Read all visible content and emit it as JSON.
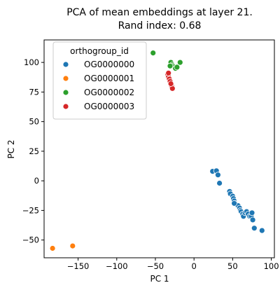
{
  "chart_data": {
    "type": "scatter",
    "title": "PCA of mean embeddings at layer 21.",
    "subtitle": "Rand index: 0.68",
    "xlabel": "PC 1",
    "ylabel": "PC 2",
    "xlim": [
      -194,
      104
    ],
    "ylim": [
      -65,
      119
    ],
    "xticks": [
      -150,
      -100,
      -50,
      0,
      50,
      100
    ],
    "yticks": [
      -50,
      -25,
      0,
      25,
      50,
      75,
      100
    ],
    "xtick_labels": [
      "−150",
      "−100",
      "−50",
      "0",
      "50",
      "100"
    ],
    "ytick_labels": [
      "−50",
      "−25",
      "0",
      "25",
      "50",
      "75",
      "100"
    ],
    "grid": false,
    "legend": {
      "title": "orthogroup_id",
      "placement": "top-left"
    },
    "series": [
      {
        "name": "OG0000000",
        "color": "#1f77b4",
        "points": [
          [
            24,
            8
          ],
          [
            29,
            8.5
          ],
          [
            31,
            5
          ],
          [
            33,
            -2
          ],
          [
            46,
            -9
          ],
          [
            47,
            -11
          ],
          [
            50,
            -13
          ],
          [
            51,
            -15
          ],
          [
            52,
            -17
          ],
          [
            53,
            -19
          ],
          [
            57,
            -21
          ],
          [
            59,
            -23
          ],
          [
            60,
            -25
          ],
          [
            61,
            -26
          ],
          [
            63,
            -28
          ],
          [
            64,
            -30
          ],
          [
            66,
            -27
          ],
          [
            68,
            -26
          ],
          [
            70,
            -28
          ],
          [
            72,
            -30
          ],
          [
            74,
            -30
          ],
          [
            75,
            -27
          ],
          [
            76,
            -33
          ],
          [
            78,
            -40
          ],
          [
            88,
            -42
          ],
          [
            52,
            -19
          ]
        ]
      },
      {
        "name": "OG0000001",
        "color": "#ff7f0e",
        "points": [
          [
            -183,
            -57
          ],
          [
            -157,
            -55
          ]
        ]
      },
      {
        "name": "OG0000002",
        "color": "#2ca02c",
        "points": [
          [
            -53,
            108
          ],
          [
            -30,
            100
          ],
          [
            -28,
            98
          ],
          [
            -27,
            97
          ],
          [
            -25,
            96
          ],
          [
            -24,
            95
          ],
          [
            -22,
            96
          ],
          [
            -18,
            100
          ],
          [
            -31,
            97
          ]
        ]
      },
      {
        "name": "OG0000003",
        "color": "#d62728",
        "points": [
          [
            -34,
            90
          ],
          [
            -33,
            88
          ],
          [
            -32,
            86
          ],
          [
            -31,
            84
          ],
          [
            -29,
            80
          ],
          [
            -28,
            78
          ],
          [
            -33,
            91
          ],
          [
            -30,
            82
          ]
        ]
      }
    ]
  }
}
